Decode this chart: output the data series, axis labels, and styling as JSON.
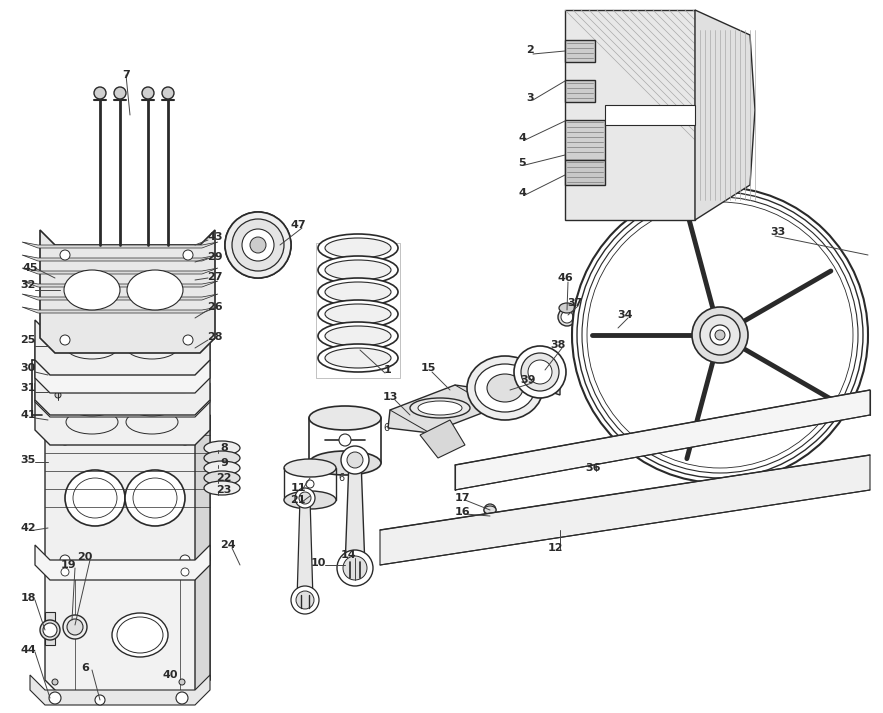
{
  "bg_color": "#ffffff",
  "lc": "#2a2a2a",
  "figsize": [
    8.83,
    7.13
  ],
  "dpi": 100
}
